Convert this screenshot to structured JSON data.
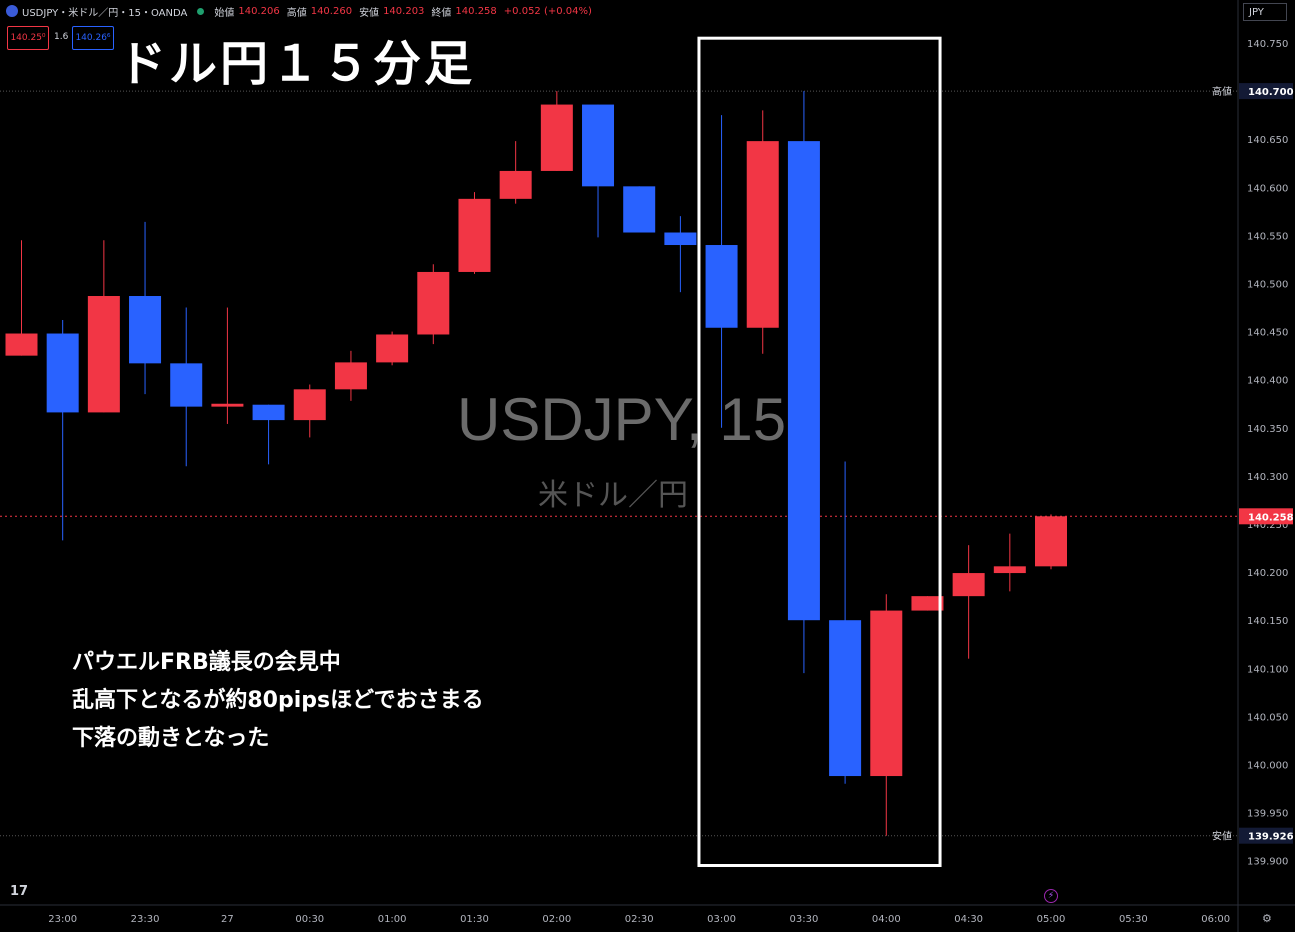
{
  "header": {
    "symbol": "USDJPY・米ドル／円・15・OANDA",
    "open_label": "始値",
    "open": "140.206",
    "high_label": "高値",
    "high": "140.260",
    "low_label": "安値",
    "low": "140.203",
    "close_label": "終値",
    "close": "140.258",
    "change": "+0.052 (+0.04%)",
    "sell_price": "140.25⁰",
    "spread": "1.6",
    "buy_price": "140.26⁶"
  },
  "currency_button": "JPY",
  "overlay_title": "ドル円１５分足",
  "notes": [
    "パウエルFRB議長の会見中",
    "乱高下となるが約80pipsほどでおさまる",
    "下落の動きとなった"
  ],
  "watermark": {
    "symbol": "USDJPY, 15",
    "name": "米ドル／円"
  },
  "tv_logo": "17",
  "colors": {
    "up": "#f23645",
    "down": "#2962ff",
    "background": "#000000",
    "highlight_box": "#ffffff"
  },
  "chart_data": {
    "type": "candlestick",
    "y_axis": {
      "range": [
        139.88,
        140.77
      ],
      "ticks": [
        140.75,
        140.7,
        140.65,
        140.6,
        140.55,
        140.5,
        140.45,
        140.4,
        140.35,
        140.3,
        140.25,
        140.2,
        140.15,
        140.1,
        140.05,
        140.0,
        139.95,
        139.9
      ],
      "tick_labels": [
        "140.750",
        "140.700",
        "140.650",
        "140.600",
        "140.550",
        "140.500",
        "140.450",
        "140.400",
        "140.350",
        "140.300",
        "140.250",
        "140.200",
        "140.150",
        "140.100",
        "140.050",
        "140.000",
        "139.950",
        "139.900"
      ]
    },
    "x_axis": {
      "labels": [
        "23:00",
        "23:30",
        "27",
        "00:30",
        "01:00",
        "01:30",
        "02:00",
        "02:30",
        "03:00",
        "03:30",
        "04:00",
        "04:30",
        "05:00",
        "05:30",
        "06:00"
      ]
    },
    "price_lines": [
      {
        "label": "高値",
        "value": 140.7,
        "value_label": "140.700"
      },
      {
        "label": "",
        "value": 140.258,
        "value_label": "140.258",
        "current": true
      },
      {
        "label": "安値",
        "value": 139.926,
        "value_label": "139.926"
      }
    ],
    "candles": [
      {
        "time": "22:45",
        "open": 140.425,
        "high": 140.545,
        "low": 140.425,
        "close": 140.448
      },
      {
        "time": "23:00",
        "open": 140.448,
        "high": 140.462,
        "low": 140.233,
        "close": 140.366
      },
      {
        "time": "23:15",
        "open": 140.366,
        "high": 140.545,
        "low": 140.366,
        "close": 140.487
      },
      {
        "time": "23:30",
        "open": 140.487,
        "high": 140.564,
        "low": 140.385,
        "close": 140.417
      },
      {
        "time": "23:45",
        "open": 140.417,
        "high": 140.475,
        "low": 140.31,
        "close": 140.372
      },
      {
        "time": "00:00",
        "open": 140.372,
        "high": 140.475,
        "low": 140.354,
        "close": 140.375
      },
      {
        "time": "00:15",
        "open": 140.374,
        "high": 140.374,
        "low": 140.312,
        "close": 140.358
      },
      {
        "time": "00:30",
        "open": 140.358,
        "high": 140.395,
        "low": 140.34,
        "close": 140.39
      },
      {
        "time": "00:45",
        "open": 140.39,
        "high": 140.43,
        "low": 140.378,
        "close": 140.418
      },
      {
        "time": "01:00",
        "open": 140.418,
        "high": 140.45,
        "low": 140.415,
        "close": 140.447
      },
      {
        "time": "01:15",
        "open": 140.447,
        "high": 140.52,
        "low": 140.437,
        "close": 140.512
      },
      {
        "time": "01:30",
        "open": 140.512,
        "high": 140.595,
        "low": 140.51,
        "close": 140.588
      },
      {
        "time": "01:45",
        "open": 140.588,
        "high": 140.648,
        "low": 140.583,
        "close": 140.617
      },
      {
        "time": "02:00",
        "open": 140.617,
        "high": 140.7,
        "low": 140.617,
        "close": 140.686
      },
      {
        "time": "02:15",
        "open": 140.686,
        "high": 140.686,
        "low": 140.548,
        "close": 140.601
      },
      {
        "time": "02:30",
        "open": 140.601,
        "high": 140.601,
        "low": 140.553,
        "close": 140.553
      },
      {
        "time": "02:45",
        "open": 140.553,
        "high": 140.57,
        "low": 140.491,
        "close": 140.54
      },
      {
        "time": "03:00",
        "open": 140.54,
        "high": 140.675,
        "low": 140.35,
        "close": 140.454
      },
      {
        "time": "03:15",
        "open": 140.454,
        "high": 140.68,
        "low": 140.427,
        "close": 140.648
      },
      {
        "time": "03:30",
        "open": 140.648,
        "high": 140.7,
        "low": 140.095,
        "close": 140.15
      },
      {
        "time": "03:45",
        "open": 140.15,
        "high": 140.315,
        "low": 139.98,
        "close": 139.988
      },
      {
        "time": "04:00",
        "open": 139.988,
        "high": 140.177,
        "low": 139.926,
        "close": 140.16
      },
      {
        "time": "04:15",
        "open": 140.16,
        "high": 140.175,
        "low": 140.16,
        "close": 140.175
      },
      {
        "time": "04:30",
        "open": 140.175,
        "high": 140.228,
        "low": 140.11,
        "close": 140.199
      },
      {
        "time": "04:45",
        "open": 140.199,
        "high": 140.24,
        "low": 140.18,
        "close": 140.206
      },
      {
        "time": "05:00",
        "open": 140.206,
        "high": 140.26,
        "low": 140.203,
        "close": 140.258
      }
    ],
    "highlight_box": {
      "from": "02:45",
      "to": "04:15",
      "top": 140.755,
      "bottom": 139.895
    }
  }
}
